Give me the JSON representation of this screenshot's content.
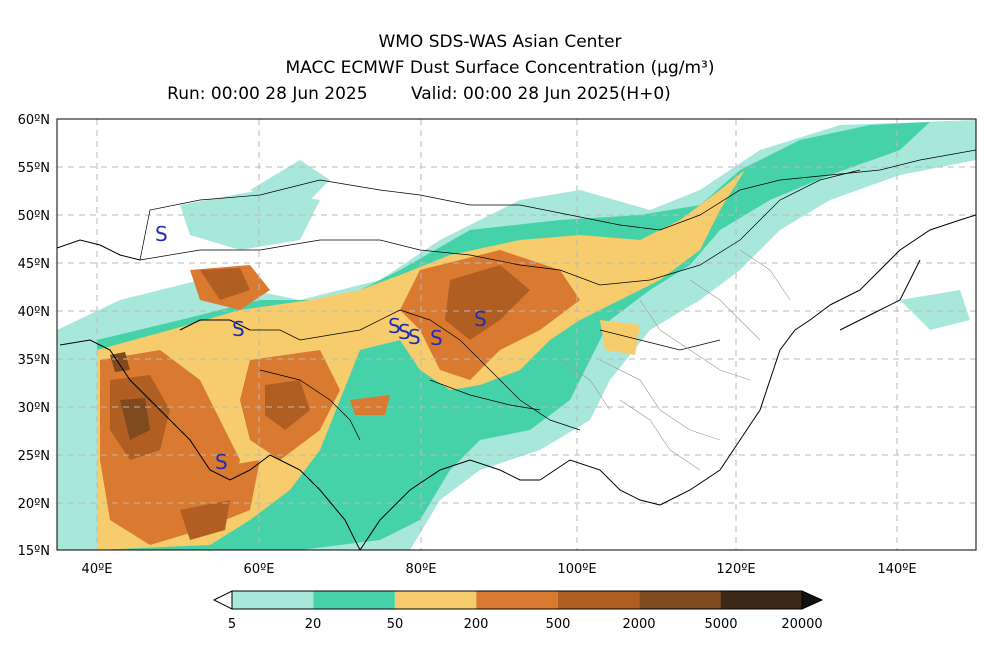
{
  "header": {
    "line1": "WMO SDS-WAS Asian Center",
    "line2": "MACC ECMWF Dust Surface Concentration (μg/m³)",
    "run": "Run: 00:00 28 Jun 2025",
    "valid": "Valid: 00:00 28 Jun 2025(H+0)"
  },
  "axes": {
    "lat_labels": [
      "60ºN",
      "55ºN",
      "50ºN",
      "45ºN",
      "40ºN",
      "35ºN",
      "30ºN",
      "25ºN",
      "20ºN",
      "15ºN"
    ],
    "lon_labels": [
      "40ºE",
      "60ºE",
      "80ºE",
      "100ºE",
      "120ºE",
      "140ºE"
    ],
    "lat_range": [
      15,
      60
    ],
    "lon_range": [
      35,
      150
    ]
  },
  "colorbar": {
    "labels": [
      "5",
      "20",
      "50",
      "200",
      "500",
      "2000",
      "5000",
      "20000"
    ],
    "colors": [
      "#a8e8dc",
      "#46d2a8",
      "#f6cc6c",
      "#d97a30",
      "#b15e22",
      "#7e4a1e",
      "#3c2816"
    ]
  },
  "dust_sources": {
    "symbol": "S",
    "color": "#1f2fb0"
  }
}
